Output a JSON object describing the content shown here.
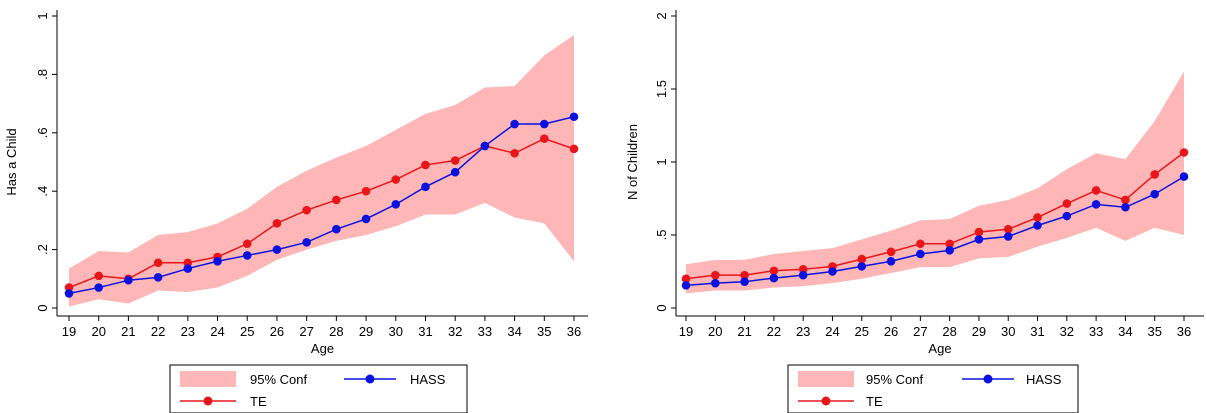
{
  "colors": {
    "ci_fill": "#ffb6b6",
    "te": "#e8161b",
    "hass": "#0a12e0"
  },
  "chart_data": [
    {
      "type": "line",
      "xlabel": "Age",
      "ylabel": "Has a Child",
      "xlim": [
        19,
        36
      ],
      "ylim": [
        0,
        1
      ],
      "x": [
        19,
        20,
        21,
        22,
        23,
        24,
        25,
        26,
        27,
        28,
        29,
        30,
        31,
        32,
        33,
        34,
        35,
        36
      ],
      "y_ticks": [
        0,
        0.2,
        0.4,
        0.6,
        0.8,
        1
      ],
      "y_tick_labels": [
        "0",
        ".2",
        ".4",
        ".6",
        ".8",
        "1"
      ],
      "x_tick_labels": [
        "19",
        "20",
        "21",
        "22",
        "23",
        "24",
        "25",
        "26",
        "27",
        "28",
        "29",
        "30",
        "31",
        "32",
        "33",
        "34",
        "35",
        "36"
      ],
      "ci": {
        "name": "95% Conf",
        "lower": [
          0.005,
          0.03,
          0.015,
          0.06,
          0.055,
          0.07,
          0.11,
          0.165,
          0.2,
          0.23,
          0.25,
          0.28,
          0.32,
          0.32,
          0.36,
          0.31,
          0.29,
          0.16
        ],
        "upper": [
          0.135,
          0.195,
          0.19,
          0.25,
          0.26,
          0.29,
          0.34,
          0.415,
          0.47,
          0.515,
          0.555,
          0.61,
          0.665,
          0.695,
          0.755,
          0.76,
          0.865,
          0.935
        ]
      },
      "series": [
        {
          "name": "TE",
          "values": [
            0.07,
            0.11,
            0.1,
            0.155,
            0.155,
            0.175,
            0.22,
            0.29,
            0.335,
            0.37,
            0.4,
            0.44,
            0.49,
            0.505,
            0.555,
            0.53,
            0.58,
            0.545
          ]
        },
        {
          "name": "HASS",
          "values": [
            0.05,
            0.07,
            0.095,
            0.105,
            0.135,
            0.16,
            0.18,
            0.2,
            0.225,
            0.27,
            0.305,
            0.355,
            0.415,
            0.465,
            0.555,
            0.63,
            0.63,
            0.655
          ]
        }
      ],
      "legend": {
        "placement": "bottom",
        "entries": [
          "95% Conf",
          "HASS",
          "TE"
        ]
      }
    },
    {
      "type": "line",
      "xlabel": "Age",
      "ylabel": "N of Children",
      "xlim": [
        19,
        36
      ],
      "ylim": [
        0,
        2
      ],
      "x": [
        19,
        20,
        21,
        22,
        23,
        24,
        25,
        26,
        27,
        28,
        29,
        30,
        31,
        32,
        33,
        34,
        35,
        36
      ],
      "y_ticks": [
        0,
        0.5,
        1,
        1.5,
        2
      ],
      "y_tick_labels": [
        "0",
        ".5",
        "1",
        "1.5",
        "2"
      ],
      "x_tick_labels": [
        "19",
        "20",
        "21",
        "22",
        "23",
        "24",
        "25",
        "26",
        "27",
        "28",
        "29",
        "30",
        "31",
        "32",
        "33",
        "34",
        "35",
        "36"
      ],
      "ci": {
        "name": "95% Conf",
        "lower": [
          0.1,
          0.12,
          0.12,
          0.14,
          0.15,
          0.17,
          0.2,
          0.24,
          0.28,
          0.28,
          0.34,
          0.35,
          0.42,
          0.48,
          0.55,
          0.46,
          0.55,
          0.5
        ],
        "upper": [
          0.3,
          0.33,
          0.33,
          0.37,
          0.39,
          0.41,
          0.47,
          0.53,
          0.6,
          0.61,
          0.7,
          0.74,
          0.82,
          0.95,
          1.06,
          1.02,
          1.28,
          1.62
        ]
      },
      "series": [
        {
          "name": "TE",
          "values": [
            0.2,
            0.225,
            0.225,
            0.255,
            0.265,
            0.285,
            0.335,
            0.385,
            0.44,
            0.44,
            0.52,
            0.54,
            0.62,
            0.715,
            0.805,
            0.74,
            0.915,
            1.065
          ]
        },
        {
          "name": "HASS",
          "values": [
            0.155,
            0.17,
            0.18,
            0.205,
            0.225,
            0.25,
            0.285,
            0.32,
            0.37,
            0.395,
            0.47,
            0.49,
            0.565,
            0.63,
            0.71,
            0.69,
            0.78,
            0.9
          ]
        }
      ],
      "legend": {
        "placement": "bottom",
        "entries": [
          "95% Conf",
          "HASS",
          "TE"
        ]
      }
    }
  ]
}
